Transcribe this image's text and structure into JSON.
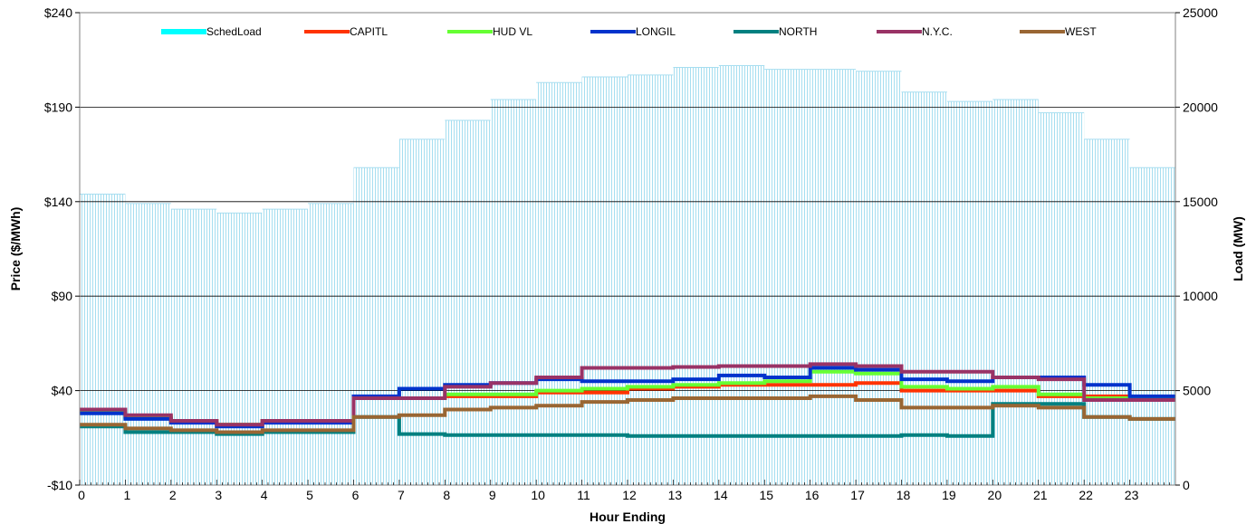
{
  "chart_data": {
    "type": "line",
    "xlabel": "Hour Ending",
    "ylabel": "Price ($/MWh)",
    "y2label": "Load (MW)",
    "xlim": [
      0,
      24
    ],
    "ylim": [
      -10,
      240
    ],
    "y2lim": [
      0,
      25000
    ],
    "x_ticks": [
      "0",
      "1",
      "2",
      "3",
      "4",
      "5",
      "6",
      "7",
      "8",
      "9",
      "10",
      "11",
      "12",
      "13",
      "14",
      "15",
      "16",
      "17",
      "18",
      "19",
      "20",
      "21",
      "22",
      "23"
    ],
    "y_ticks": [
      "-$10",
      "$40",
      "$90",
      "$140",
      "$190",
      "$240"
    ],
    "y_tick_values": [
      -10,
      40,
      90,
      140,
      190,
      240
    ],
    "y2_ticks": [
      "0",
      "5000",
      "10000",
      "15000",
      "20000",
      "25000"
    ],
    "y2_tick_values": [
      0,
      5000,
      10000,
      15000,
      20000,
      25000
    ],
    "grid": true,
    "legend_position": "top",
    "load_series": {
      "name": "SchedLoad",
      "color": "#a6def0",
      "legend_color": "#00ffff",
      "x": [
        0,
        1,
        2,
        3,
        4,
        5,
        6,
        7,
        8,
        9,
        10,
        11,
        12,
        13,
        14,
        15,
        16,
        17,
        18,
        19,
        20,
        21,
        22,
        23
      ],
      "values": [
        15400,
        14900,
        14600,
        14400,
        14600,
        14900,
        16800,
        18300,
        19300,
        20400,
        21300,
        21600,
        21700,
        22100,
        22200,
        22000,
        22000,
        21900,
        20800,
        20300,
        20400,
        19700,
        18300,
        16800
      ]
    },
    "series": [
      {
        "name": "CAPITL",
        "color": "#ff3300",
        "x": [
          0,
          1,
          2,
          3,
          4,
          5,
          6,
          7,
          8,
          9,
          10,
          11,
          12,
          13,
          14,
          15,
          16,
          17,
          18,
          19,
          20,
          21,
          22,
          23
        ],
        "values": [
          29,
          26,
          24,
          22,
          24,
          24,
          36,
          36,
          37,
          37,
          39,
          39,
          41,
          42,
          43,
          43,
          43,
          44,
          40,
          40,
          40,
          37,
          37,
          35
        ]
      },
      {
        "name": "HUD VL",
        "color": "#66ff33",
        "x": [
          0,
          1,
          2,
          3,
          4,
          5,
          6,
          7,
          8,
          9,
          10,
          11,
          12,
          13,
          14,
          15,
          16,
          17,
          18,
          19,
          20,
          21,
          22,
          23
        ],
        "values": [
          29,
          26,
          24,
          22,
          24,
          24,
          36,
          36,
          38,
          38,
          40,
          41,
          42,
          43,
          44,
          45,
          50,
          49,
          42,
          41,
          42,
          38,
          36,
          36
        ]
      },
      {
        "name": "LONGIL",
        "color": "#0033cc",
        "x": [
          0,
          1,
          2,
          3,
          4,
          5,
          6,
          7,
          8,
          9,
          10,
          11,
          12,
          13,
          14,
          15,
          16,
          17,
          18,
          19,
          20,
          21,
          22,
          23
        ],
        "values": [
          28,
          25,
          23,
          21,
          23,
          23,
          37,
          41,
          43,
          44,
          46,
          45,
          45,
          46,
          48,
          47,
          52,
          51,
          46,
          45,
          47,
          47,
          43,
          37
        ]
      },
      {
        "name": "NORTH",
        "color": "#008080",
        "x": [
          0,
          1,
          2,
          3,
          4,
          5,
          6,
          7,
          8,
          9,
          10,
          11,
          12,
          13,
          14,
          15,
          16,
          17,
          18,
          19,
          20,
          21,
          22,
          23
        ],
        "values": [
          21,
          18,
          18,
          17,
          18,
          18,
          26,
          17,
          16.5,
          16.5,
          16.5,
          16.5,
          16,
          16,
          16,
          16,
          16,
          16,
          16.5,
          16,
          33,
          33,
          26,
          25
        ]
      },
      {
        "name": "N.Y.C.",
        "color": "#993366",
        "x": [
          0,
          1,
          2,
          3,
          4,
          5,
          6,
          7,
          8,
          9,
          10,
          11,
          12,
          13,
          14,
          15,
          16,
          17,
          18,
          19,
          20,
          21,
          22,
          23
        ],
        "values": [
          30,
          27,
          24,
          22,
          24,
          24,
          36,
          36,
          42,
          44,
          47,
          52,
          52,
          52.5,
          53,
          53,
          54,
          53,
          50,
          50,
          47,
          46,
          35,
          35
        ]
      },
      {
        "name": "WEST",
        "color": "#996633",
        "x": [
          0,
          1,
          2,
          3,
          4,
          5,
          6,
          7,
          8,
          9,
          10,
          11,
          12,
          13,
          14,
          15,
          16,
          17,
          18,
          19,
          20,
          21,
          22,
          23
        ],
        "values": [
          22,
          20,
          19,
          18,
          19,
          19,
          26,
          27,
          30,
          31,
          32,
          34,
          35,
          36,
          36,
          36,
          37,
          35,
          31,
          31,
          32,
          31,
          26,
          25
        ]
      }
    ]
  }
}
